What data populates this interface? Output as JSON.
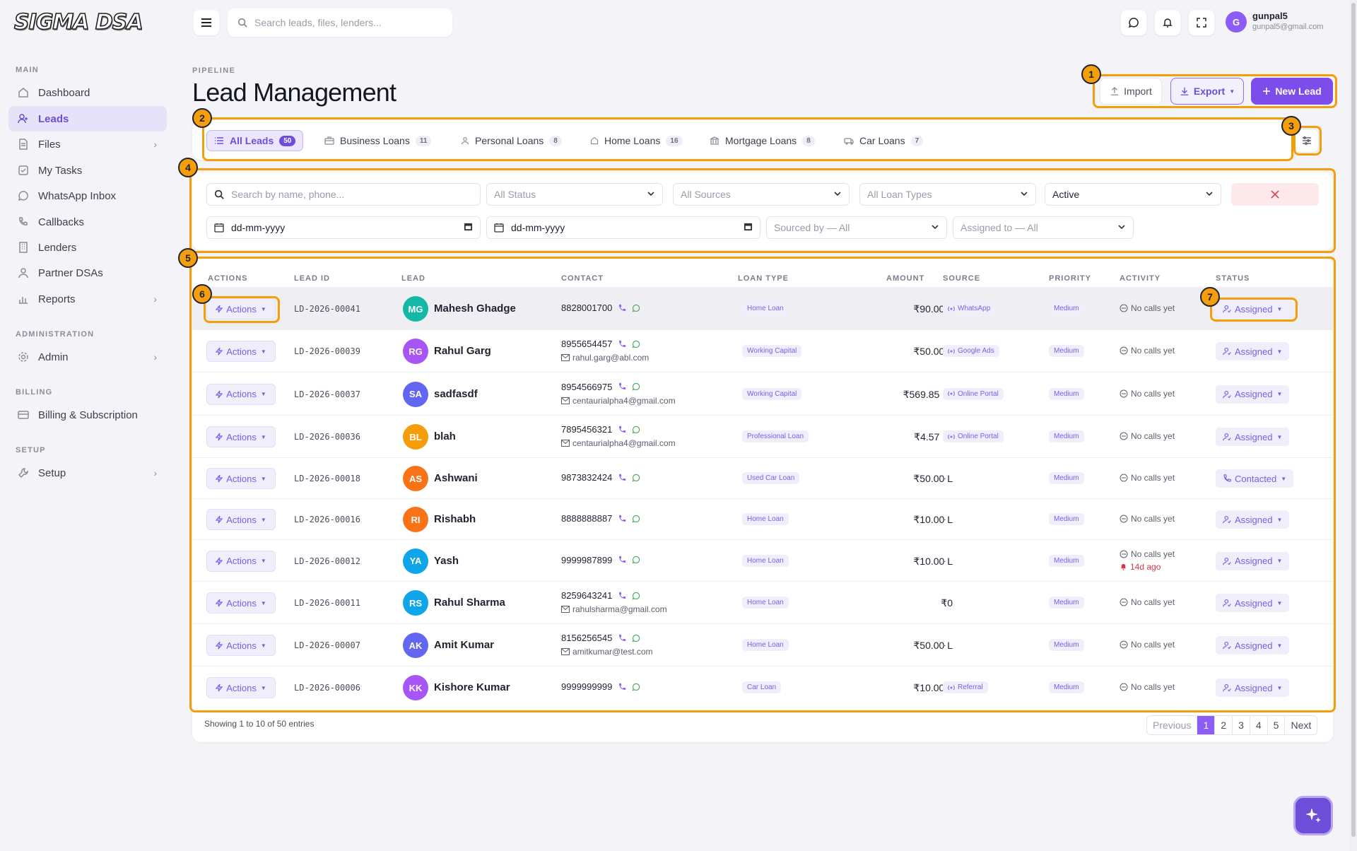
{
  "app": {
    "logo": "SIGMA DSA"
  },
  "sidebar": {
    "sections": {
      "main": "MAIN",
      "administration": "ADMINISTRATION",
      "billing": "BILLING",
      "setup": "SETUP"
    },
    "items": [
      {
        "label": "Dashboard",
        "icon": "home-icon"
      },
      {
        "label": "Leads",
        "icon": "users-icon",
        "active": true
      },
      {
        "label": "Files",
        "icon": "file-icon"
      },
      {
        "label": "My Tasks",
        "icon": "checkbox-icon"
      },
      {
        "label": "WhatsApp Inbox",
        "icon": "whatsapp-icon"
      },
      {
        "label": "Callbacks",
        "icon": "phone-icon"
      },
      {
        "label": "Lenders",
        "icon": "building-icon"
      },
      {
        "label": "Partner DSAs",
        "icon": "user-icon"
      },
      {
        "label": "Reports",
        "icon": "chart-icon"
      },
      {
        "label": "Admin",
        "icon": "gear-icon"
      },
      {
        "label": "Billing & Subscription",
        "icon": "card-icon"
      },
      {
        "label": "Setup",
        "icon": "wrench-icon"
      }
    ]
  },
  "topbar": {
    "search_placeholder": "Search leads, files, lenders...",
    "user": {
      "initial": "G",
      "name": "gunpal5",
      "email": "gunpal5@gmail.com"
    }
  },
  "header": {
    "breadcrumb": "PIPELINE",
    "title": "Lead Management",
    "import_label": "Import",
    "export_label": "Export",
    "new_lead_label": "New Lead"
  },
  "tabs": [
    {
      "label": "All Leads",
      "count": "50",
      "active": true
    },
    {
      "label": "Business Loans",
      "count": "11"
    },
    {
      "label": "Personal Loans",
      "count": "8"
    },
    {
      "label": "Home Loans",
      "count": "16"
    },
    {
      "label": "Mortgage Loans",
      "count": "8"
    },
    {
      "label": "Car Loans",
      "count": "7"
    }
  ],
  "filters": {
    "search_placeholder": "Search by name, phone...",
    "status": "All Status",
    "sources": "All Sources",
    "loan_types": "All Loan Types",
    "state": "Active",
    "date_from": "dd-mm-yyyy",
    "date_to": "dd-mm-yyyy",
    "sourced_by": "Sourced by — All",
    "assigned_to": "Assigned to — All"
  },
  "table": {
    "headers": {
      "actions": "ACTIONS",
      "lead_id": "LEAD ID",
      "lead": "LEAD",
      "contact": "CONTACT",
      "loan_type": "LOAN TYPE",
      "amount": "AMOUNT",
      "source": "SOURCE",
      "priority": "PRIORITY",
      "activity": "ACTIVITY",
      "status": "STATUS"
    },
    "actions_label": "Actions",
    "rows": [
      {
        "id": "LD-2026-00041",
        "initials": "MG",
        "name": "Mahesh Ghadge",
        "color": "#14b8a6",
        "phone": "8828001700",
        "email": "",
        "loan_type": "Home Loan",
        "amount": "₹90.00 L",
        "source": "WhatsApp",
        "priority": "Medium",
        "activity": "No calls yet",
        "overdue": "",
        "status": "Assigned"
      },
      {
        "id": "LD-2026-00039",
        "initials": "RG",
        "name": "Rahul Garg",
        "color": "#a855f7",
        "phone": "8955654457",
        "email": "rahul.garg@abl.com",
        "loan_type": "Working Capital",
        "amount": "₹50.00 L",
        "source": "Google Ads",
        "priority": "Medium",
        "activity": "No calls yet",
        "overdue": "",
        "status": "Assigned"
      },
      {
        "id": "LD-2026-00037",
        "initials": "SA",
        "name": "sadfasdf",
        "color": "#6366f1",
        "phone": "8954566975",
        "email": "centaurialpha4@gmail.com",
        "loan_type": "Working Capital",
        "amount": "₹569.85 Cr",
        "source": "Online Portal",
        "priority": "Medium",
        "activity": "No calls yet",
        "overdue": "",
        "status": "Assigned"
      },
      {
        "id": "LD-2026-00036",
        "initials": "BL",
        "name": "blah",
        "color": "#f59e0b",
        "phone": "7895456321",
        "email": "centaurialpha4@gmail.com",
        "loan_type": "Professional Loan",
        "amount": "₹4.57 Cr",
        "source": "Online Portal",
        "priority": "Medium",
        "activity": "No calls yet",
        "overdue": "",
        "status": "Assigned"
      },
      {
        "id": "LD-2026-00018",
        "initials": "AS",
        "name": "Ashwani",
        "color": "#f97316",
        "phone": "9873832424",
        "email": "",
        "loan_type": "Used Car Loan",
        "amount": "₹50.00 L",
        "source": "-",
        "priority": "Medium",
        "activity": "No calls yet",
        "overdue": "",
        "status": "Contacted"
      },
      {
        "id": "LD-2026-00016",
        "initials": "RI",
        "name": "Rishabh",
        "color": "#f97316",
        "phone": "8888888887",
        "email": "",
        "loan_type": "Home Loan",
        "amount": "₹10.00 L",
        "source": "-",
        "priority": "Medium",
        "activity": "No calls yet",
        "overdue": "",
        "status": "Assigned"
      },
      {
        "id": "LD-2026-00012",
        "initials": "YA",
        "name": "Yash",
        "color": "#0ea5e9",
        "phone": "9999987899",
        "email": "",
        "loan_type": "Home Loan",
        "amount": "₹10.00 L",
        "source": "-",
        "priority": "Medium",
        "activity": "No calls yet",
        "overdue": "14d ago",
        "status": "Assigned"
      },
      {
        "id": "LD-2026-00011",
        "initials": "RS",
        "name": "Rahul Sharma",
        "color": "#0ea5e9",
        "phone": "8259643241",
        "email": "rahulsharma@gmail.com",
        "loan_type": "Home Loan",
        "amount": "₹0",
        "source": "-",
        "priority": "Medium",
        "activity": "No calls yet",
        "overdue": "",
        "status": "Assigned"
      },
      {
        "id": "LD-2026-00007",
        "initials": "AK",
        "name": "Amit Kumar",
        "color": "#6366f1",
        "phone": "8156256545",
        "email": "amitkumar@test.com",
        "loan_type": "Home Loan",
        "amount": "₹50.00 L",
        "source": "-",
        "priority": "Medium",
        "activity": "No calls yet",
        "overdue": "",
        "status": "Assigned"
      },
      {
        "id": "LD-2026-00006",
        "initials": "KK",
        "name": "Kishore Kumar",
        "color": "#a855f7",
        "phone": "9999999999",
        "email": "",
        "loan_type": "Car Loan",
        "amount": "₹10.00 L",
        "source": "Referral",
        "priority": "Medium",
        "activity": "No calls yet",
        "overdue": "",
        "status": "Assigned"
      }
    ]
  },
  "footer": {
    "showing": "Showing 1 to 10 of 50 entries",
    "pager": [
      "Previous",
      "1",
      "2",
      "3",
      "4",
      "5",
      "Next"
    ]
  },
  "callouts": [
    "1",
    "2",
    "3",
    "4",
    "5",
    "6",
    "7"
  ],
  "colors": {
    "accent": "#7c4dea",
    "callout": "#f59e0b",
    "danger": "#e04454"
  }
}
